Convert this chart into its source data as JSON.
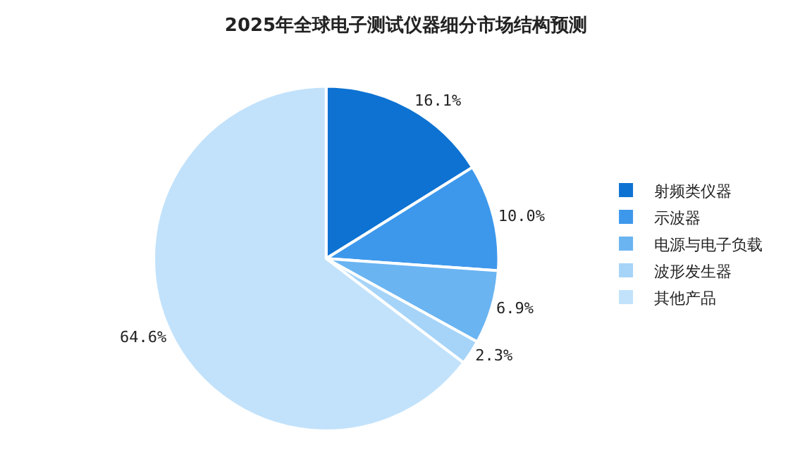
{
  "chart_data": {
    "type": "pie",
    "title": "2025年全球电子测试仪器细分市场结构预测",
    "categories": [
      "射频类仪器",
      "示波器",
      "电源与电子负载",
      "波形发生器",
      "其他产品"
    ],
    "values": [
      16.1,
      10.0,
      6.9,
      2.3,
      64.6
    ],
    "value_labels": [
      "16.1%",
      "10.0%",
      "6.9%",
      "2.3%",
      "64.6%"
    ],
    "colors": [
      "#0d72d2",
      "#3d98ec",
      "#6ab4f2",
      "#a6d4f8",
      "#c2e2fb"
    ],
    "legend": "right"
  }
}
